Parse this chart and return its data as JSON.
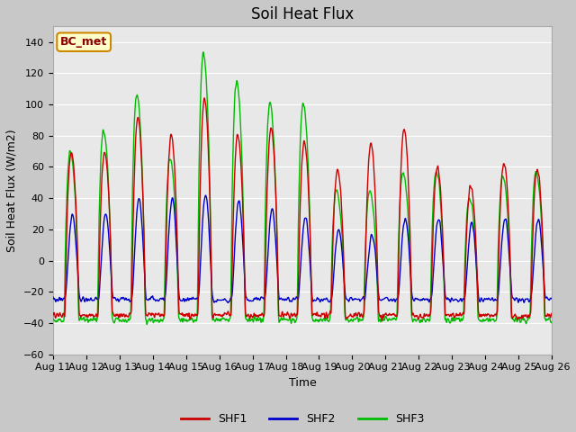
{
  "title": "Soil Heat Flux",
  "xlabel": "Time",
  "ylabel": "Soil Heat Flux (W/m2)",
  "ylim": [
    -60,
    150
  ],
  "yticks": [
    -60,
    -40,
    -20,
    0,
    20,
    40,
    60,
    80,
    100,
    120,
    140
  ],
  "x_start_day": 11,
  "x_end_day": 26,
  "x_tick_days": [
    11,
    12,
    13,
    14,
    15,
    16,
    17,
    18,
    19,
    20,
    21,
    22,
    23,
    24,
    25,
    26
  ],
  "line_colors": {
    "SHF1": "#cc0000",
    "SHF2": "#0000cc",
    "SHF3": "#00bb00"
  },
  "line_widths": {
    "SHF1": 1.0,
    "SHF2": 1.0,
    "SHF3": 1.0
  },
  "legend_label": "BC_met",
  "legend_bg": "#ffffcc",
  "legend_border": "#cc8800",
  "fig_bg": "#c8c8c8",
  "plot_bg": "#e8e8e8",
  "grid_color": "#ffffff",
  "title_fontsize": 12,
  "axis_fontsize": 9,
  "tick_fontsize": 8,
  "shf1_amps": [
    70,
    70,
    91,
    80,
    104,
    80,
    85,
    76,
    58,
    75,
    85,
    60,
    48,
    63,
    58
  ],
  "shf2_amps": [
    30,
    30,
    40,
    40,
    42,
    38,
    33,
    28,
    20,
    17,
    27,
    27,
    24,
    27,
    26
  ],
  "shf3_amps": [
    70,
    83,
    107,
    65,
    133,
    115,
    101,
    101,
    45,
    45,
    57,
    57,
    40,
    55,
    57
  ],
  "shf1_night": -35,
  "shf2_night": -25,
  "shf3_night": -38
}
